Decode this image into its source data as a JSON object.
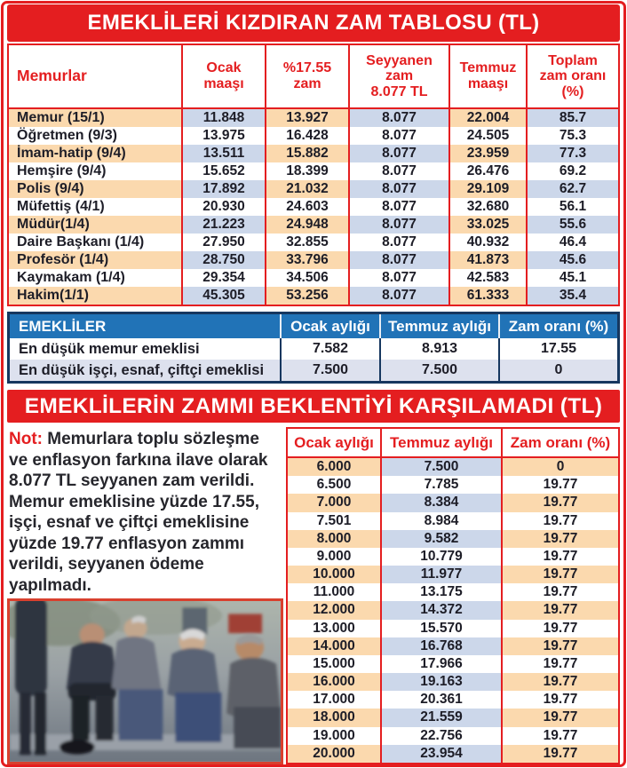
{
  "colors": {
    "accent_red": "#e41e20",
    "header_blue": "#2173b7",
    "navy_border": "#16375f",
    "peach_cell": "#fbd9ae",
    "blue_cell": "#ccd7ea",
    "retiree_row_blue": "#dde1ee"
  },
  "table1": {
    "title": "EMEKLİLERİ KIZDIRAN ZAM TABLOSU (TL)",
    "headers": [
      {
        "lines": [
          "Memurlar"
        ]
      },
      {
        "lines": [
          "Ocak",
          "maaşı"
        ]
      },
      {
        "lines": [
          "%17.55",
          "zam"
        ]
      },
      {
        "lines": [
          "Seyyanen",
          "zam",
          "8.077 TL"
        ]
      },
      {
        "lines": [
          "Temmuz",
          "maaşı"
        ]
      },
      {
        "lines": [
          "Toplam",
          "zam oranı",
          "(%)"
        ]
      }
    ],
    "rows": [
      [
        "Memur (15/1)",
        "11.848",
        "13.927",
        "8.077",
        "22.004",
        "85.7"
      ],
      [
        "Öğretmen (9/3)",
        "13.975",
        "16.428",
        "8.077",
        "24.505",
        "75.3"
      ],
      [
        "İmam-hatip (9/4)",
        "13.511",
        "15.882",
        "8.077",
        "23.959",
        "77.3"
      ],
      [
        "Hemşire (9/4)",
        "15.652",
        "18.399",
        "8.077",
        "26.476",
        "69.2"
      ],
      [
        "Polis (9/4)",
        "17.892",
        "21.032",
        "8.077",
        "29.109",
        "62.7"
      ],
      [
        "Müfettiş (4/1)",
        "20.930",
        "24.603",
        "8.077",
        "32.680",
        "56.1"
      ],
      [
        "Müdür(1/4)",
        "21.223",
        "24.948",
        "8.077",
        "33.025",
        "55.6"
      ],
      [
        "Daire Başkanı (1/4)",
        "27.950",
        "32.855",
        "8.077",
        "40.932",
        "46.4"
      ],
      [
        "Profesör (1/4)",
        "28.750",
        "33.796",
        "8.077",
        "41.873",
        "45.6"
      ],
      [
        "Kaymakam (1/4)",
        "29.354",
        "34.506",
        "8.077",
        "42.583",
        "45.1"
      ],
      [
        "Hakim(1/1)",
        "45.305",
        "53.256",
        "8.077",
        "61.333",
        "35.4"
      ]
    ]
  },
  "retirees_table": {
    "headers": [
      "EMEKLİLER",
      "Ocak aylığı",
      "Temmuz aylığı",
      "Zam oranı (%)"
    ],
    "rows": [
      [
        "En düşük memur emeklisi",
        "7.582",
        "8.913",
        "17.55"
      ],
      [
        "En düşük işçi, esnaf, çiftçi emeklisi",
        "7.500",
        "7.500",
        "0"
      ]
    ]
  },
  "section2": {
    "title": "EMEKLİLERİN ZAMMI BEKLENTİYİ KARŞILAMADI (TL)",
    "note_label": "Not:",
    "note_text": "Memurlara toplu sözleşme ve enflasyon farkına ilave olarak 8.077 TL seyyanen zam verildi. Memur emeklisine yüzde 17.55, işçi, esnaf ve çiftçi emeklisine yüzde 19.77 enflasyon zammı verildi, seyyanen ödeme yapılmadı.",
    "photo_name": "pensioners-on-bench-photo",
    "table": {
      "headers": [
        "Ocak aylığı",
        "Temmuz aylığı",
        "Zam oranı (%)"
      ],
      "rows": [
        [
          "6.000",
          "7.500",
          "0"
        ],
        [
          "6.500",
          "7.785",
          "19.77"
        ],
        [
          "7.000",
          "8.384",
          "19.77"
        ],
        [
          "7.501",
          "8.984",
          "19.77"
        ],
        [
          "8.000",
          "9.582",
          "19.77"
        ],
        [
          "9.000",
          "10.779",
          "19.77"
        ],
        [
          "10.000",
          "11.977",
          "19.77"
        ],
        [
          "11.000",
          "13.175",
          "19.77"
        ],
        [
          "12.000",
          "14.372",
          "19.77"
        ],
        [
          "13.000",
          "15.570",
          "19.77"
        ],
        [
          "14.000",
          "16.768",
          "19.77"
        ],
        [
          "15.000",
          "17.966",
          "19.77"
        ],
        [
          "16.000",
          "19.163",
          "19.77"
        ],
        [
          "17.000",
          "20.361",
          "19.77"
        ],
        [
          "18.000",
          "21.559",
          "19.77"
        ],
        [
          "19.000",
          "22.756",
          "19.77"
        ],
        [
          "20.000",
          "23.954",
          "19.77"
        ]
      ]
    }
  }
}
